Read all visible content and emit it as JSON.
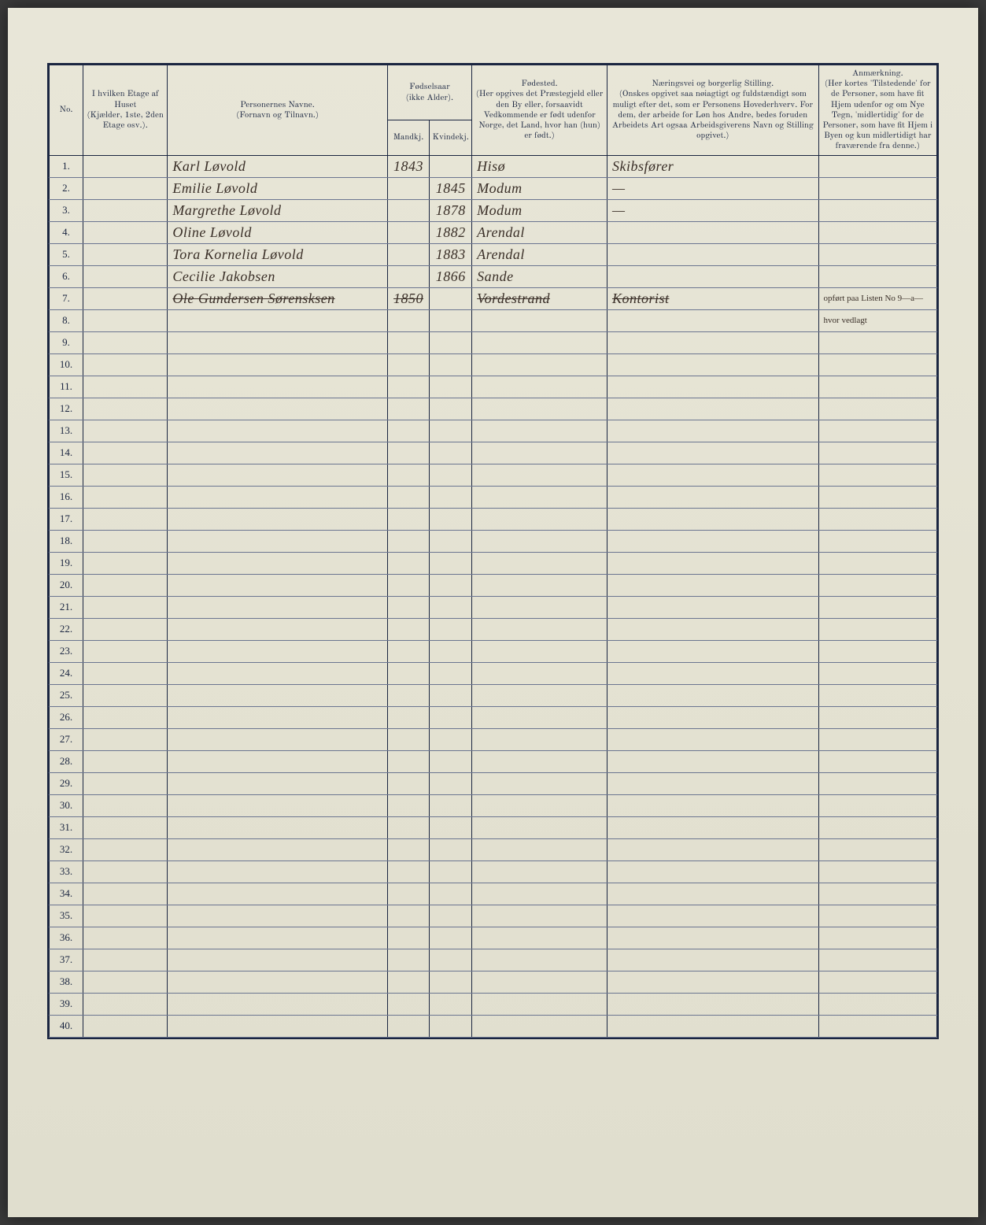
{
  "headers": {
    "no": "No.",
    "etage": "I hvilken Etage af Huset",
    "etage_sub": "(Kjælder, 1ste, 2den Etage osv.).",
    "name": "Personernes Navne.",
    "name_sub": "(Fornavn og Tilnavn.)",
    "birthyear": "Fødselsaar",
    "birthyear_sub": "(ikke Alder).",
    "male": "Mandkj.",
    "female": "Kvindekj.",
    "birthplace": "Fødested.",
    "birthplace_sub": "(Her opgives det Præstegjeld eller den By eller, forsaavidt Vedkommende er født udenfor Norge, det Land, hvor han (hun) er født.)",
    "occupation": "Næringsvei og borgerlig Stilling.",
    "occupation_sub": "(Onskes opgivet saa nøiagtigt og fuldstændigt som muligt efter det, som er Personens Hovederhverv. For dem, der arbeide for Løn hos Andre, bedes foruden Arbeidets Art ogsaa Arbeidsgiverens Navn og Stilling opgivet.)",
    "remarks": "Anmærkning.",
    "remarks_sub": "(Her kortes 'Tilstedende' for de Personer, som have fit Hjem udenfor og om Nye Tegn, 'midlertidig' for de Personer, som have fit Hjem i Byen og kun midlertidigt har fraværende fra denne.)"
  },
  "rows": [
    {
      "num": "1.",
      "name": "Karl Løvold",
      "year_m": "1843",
      "year_f": "",
      "birthplace": "Hisø",
      "occupation": "Skibsfører",
      "remarks": ""
    },
    {
      "num": "2.",
      "name": "Emilie Løvold",
      "year_m": "",
      "year_f": "1845",
      "birthplace": "Modum",
      "occupation": "—",
      "remarks": ""
    },
    {
      "num": "3.",
      "name": "Margrethe Løvold",
      "year_m": "",
      "year_f": "1878",
      "birthplace": "Modum",
      "occupation": "—",
      "remarks": ""
    },
    {
      "num": "4.",
      "name": "Oline Løvold",
      "year_m": "",
      "year_f": "1882",
      "birthplace": "Arendal",
      "occupation": "",
      "remarks": ""
    },
    {
      "num": "5.",
      "name": "Tora Kornelia Løvold",
      "year_m": "",
      "year_f": "1883",
      "birthplace": "Arendal",
      "occupation": "",
      "remarks": ""
    },
    {
      "num": "6.",
      "name": "Cecilie Jakobsen",
      "year_m": "",
      "year_f": "1866",
      "birthplace": "Sande",
      "occupation": "",
      "remarks": ""
    },
    {
      "num": "7.",
      "name": "Ole Gundersen Sørensksen",
      "year_m": "1850",
      "year_f": "",
      "birthplace": "Vordestrand",
      "occupation": "Kontorist",
      "remarks": "opført paa Listen No 9—a—",
      "struck": true
    },
    {
      "num": "8.",
      "name": "",
      "year_m": "",
      "year_f": "",
      "birthplace": "",
      "occupation": "",
      "remarks": "hvor vedlagt"
    }
  ],
  "empty_rows": [
    "9.",
    "10.",
    "11.",
    "12.",
    "13.",
    "14.",
    "15.",
    "16.",
    "17.",
    "18.",
    "19.",
    "20.",
    "21.",
    "22.",
    "23.",
    "24.",
    "25.",
    "26.",
    "27.",
    "28.",
    "29.",
    "30.",
    "31.",
    "32.",
    "33.",
    "34.",
    "35.",
    "36.",
    "37.",
    "38.",
    "39.",
    "40."
  ],
  "colors": {
    "page_bg": "#e4e2d2",
    "line_color": "#1a2540",
    "faint_line": "#6b7590",
    "ink": "#3a2f28"
  }
}
